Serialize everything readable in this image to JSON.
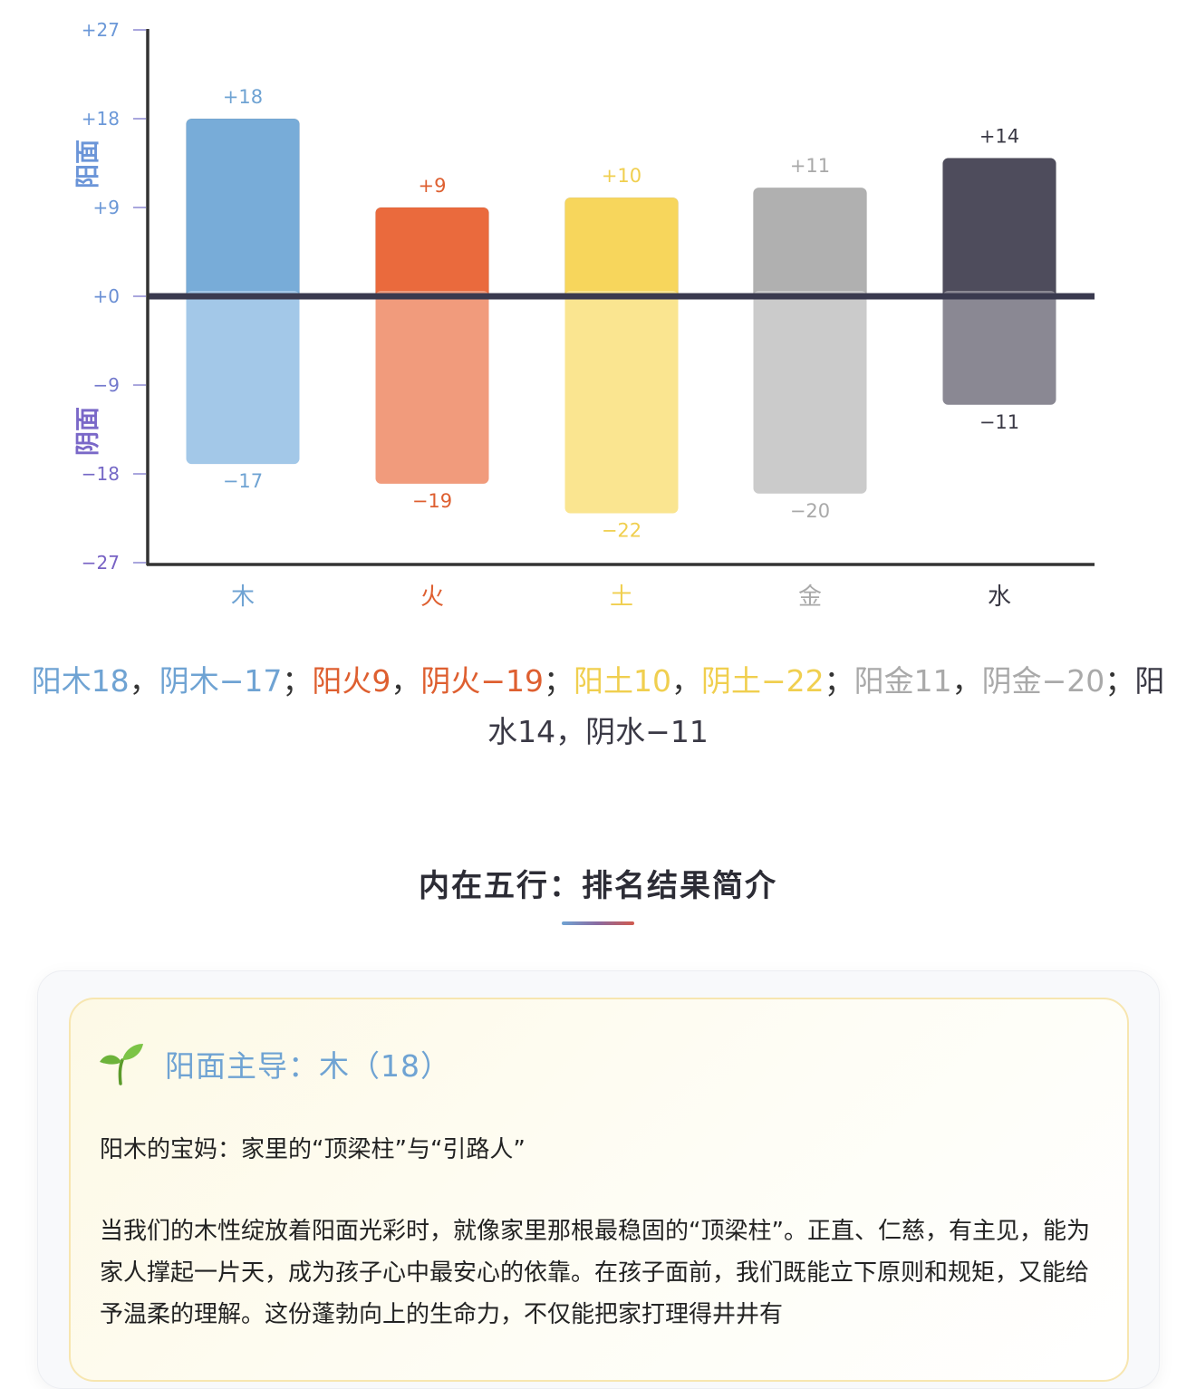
{
  "chart_data": {
    "type": "bar",
    "subtype": "diverging-stacked",
    "categories": [
      "木",
      "火",
      "土",
      "金",
      "水"
    ],
    "series": [
      {
        "name": "阳面",
        "values": [
          18,
          9,
          10,
          11,
          14
        ]
      },
      {
        "name": "阴面",
        "values": [
          -17,
          -19,
          -22,
          -20,
          -11
        ]
      }
    ],
    "value_labels_positive": [
      "+18",
      "+9",
      "+10",
      "+11",
      "+14"
    ],
    "value_labels_negative": [
      "−17",
      "−19",
      "−22",
      "−20",
      "−11"
    ],
    "colors_positive": [
      "#78acd8",
      "#ea6a3d",
      "#f7d65c",
      "#b0b0b0",
      "#4e4c5c"
    ],
    "colors_negative": [
      "#a3c8e8",
      "#f19b7c",
      "#fae590",
      "#cbcbcb",
      "#8a8893"
    ],
    "label_colors": [
      "#6fa3d3",
      "#de5f30",
      "#f0cf4f",
      "#a9a9a9",
      "#3a3945"
    ],
    "yticks": [
      27,
      18,
      9,
      0,
      -9,
      -18,
      -27
    ],
    "ytick_labels": [
      "+27",
      "+18",
      "+9",
      "+0",
      "−9",
      "−18",
      "−27"
    ],
    "ylim": [
      -27,
      27
    ],
    "ylabel_top": "阳面",
    "ylabel_bottom": "阴面",
    "xlabel": "",
    "title": "",
    "grid": false,
    "legend": "none"
  },
  "summary": {
    "segments": [
      {
        "text": "阳木18",
        "color": "#6fa3d3"
      },
      {
        "text": "，",
        "color": "#333"
      },
      {
        "text": "阴木−17",
        "color": "#6fa3d3"
      },
      {
        "text": "；",
        "color": "#333"
      },
      {
        "text": "阳火9",
        "color": "#de5f30"
      },
      {
        "text": "，",
        "color": "#333"
      },
      {
        "text": "阴火−19",
        "color": "#de5f30"
      },
      {
        "text": "；",
        "color": "#333"
      },
      {
        "text": "阳土10",
        "color": "#f0cf4f"
      },
      {
        "text": "，",
        "color": "#333"
      },
      {
        "text": "阴土−22",
        "color": "#f0cf4f"
      },
      {
        "text": "；",
        "color": "#333"
      },
      {
        "text": "阳金11",
        "color": "#a9a9a9"
      },
      {
        "text": "，",
        "color": "#333"
      },
      {
        "text": "阴金−20",
        "color": "#a9a9a9"
      },
      {
        "text": "；",
        "color": "#333"
      },
      {
        "text": "阳水14",
        "color": "#3a3945"
      },
      {
        "text": "，",
        "color": "#3a3945"
      },
      {
        "text": "阴水−11",
        "color": "#3a3945"
      }
    ]
  },
  "section": {
    "title": "内在五行：排名结果简介"
  },
  "card": {
    "icon": "sprout-icon",
    "title": "阳面主导：木（18）",
    "subtitle": "阳木的宝妈：家里的“顶梁柱”与“引路人”",
    "body": "当我们的木性绽放着阳面光彩时，就像家里那根最稳固的“顶梁柱”。正直、仁慈，有主见，能为家人撑起一片天，成为孩子心中最安心的依靠。在孩子面前，我们既能立下原则和规矩，又能给予温柔的理解。这份蓬勃向上的生命力，不仅能把家打理得井井有"
  }
}
